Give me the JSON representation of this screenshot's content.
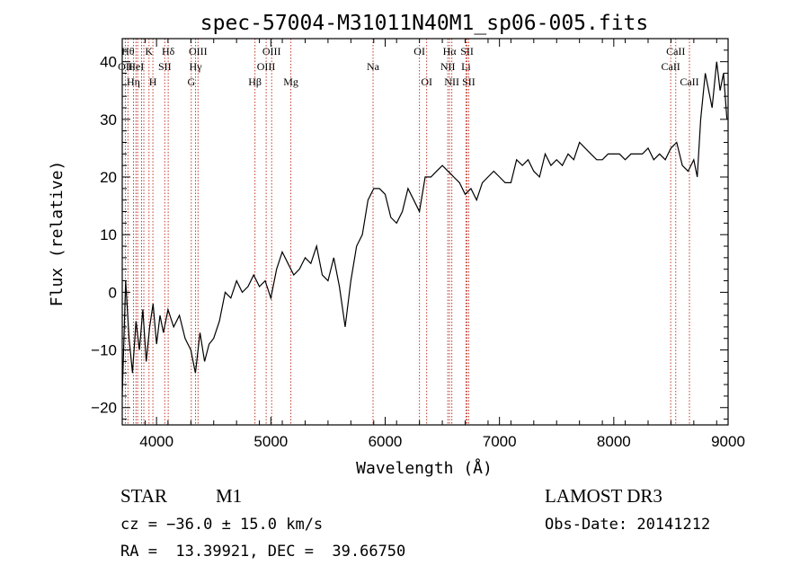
{
  "chart_data": {
    "type": "line",
    "title": "spec-57004-M31011N40M1_sp06-005.fits",
    "xlabel": "Wavelength (Å)",
    "ylabel": "Flux (relative)",
    "xlim": [
      3700,
      9000
    ],
    "ylim": [
      -23,
      44
    ],
    "x_ticks": [
      4000,
      5000,
      6000,
      7000,
      8000,
      9000
    ],
    "x_tick_labels": [
      "4000",
      "5000",
      "6000",
      "7000",
      "8000",
      "9000"
    ],
    "y_ticks": [
      -20,
      -10,
      0,
      10,
      20,
      30,
      40
    ],
    "y_tick_labels": [
      "−20",
      "−10",
      "0",
      "10",
      "20",
      "30",
      "40"
    ],
    "line_color": "#000000",
    "marker_color": "#c0392b",
    "series": [
      {
        "x": [
          3700,
          3730,
          3760,
          3790,
          3820,
          3850,
          3880,
          3910,
          3940,
          3970,
          4000,
          4030,
          4060,
          4100,
          4150,
          4200,
          4250,
          4300,
          4340,
          4380,
          4420,
          4460,
          4500,
          4550,
          4600,
          4650,
          4700,
          4750,
          4800,
          4850,
          4900,
          4950,
          5000,
          5050,
          5100,
          5150,
          5200,
          5250,
          5300,
          5350,
          5400,
          5450,
          5500,
          5550,
          5600,
          5650,
          5700,
          5750,
          5800,
          5850,
          5900,
          5950,
          6000,
          6050,
          6100,
          6150,
          6200,
          6250,
          6300,
          6350,
          6400,
          6450,
          6500,
          6550,
          6600,
          6650,
          6700,
          6750,
          6800,
          6850,
          6900,
          6950,
          7000,
          7050,
          7100,
          7150,
          7200,
          7250,
          7300,
          7350,
          7400,
          7450,
          7500,
          7550,
          7600,
          7650,
          7700,
          7750,
          7800,
          7850,
          7900,
          7950,
          8000,
          8050,
          8100,
          8150,
          8200,
          8250,
          8300,
          8350,
          8400,
          8450,
          8500,
          8550,
          8600,
          8650,
          8700,
          8730,
          8760,
          8800,
          8830,
          8860,
          8900,
          8930,
          8960,
          8990
        ],
        "y": [
          -18,
          2,
          -8,
          -14,
          -5,
          -10,
          -3,
          -12,
          -6,
          -2,
          -9,
          -4,
          -7,
          -3,
          -6,
          -4,
          -8,
          -10,
          -14,
          -7,
          -12,
          -9,
          -8,
          -5,
          0,
          -1,
          2,
          0,
          1,
          3,
          1,
          2,
          -1,
          4,
          7,
          5,
          3,
          4,
          6,
          5,
          8,
          3,
          2,
          6,
          1,
          -6,
          2,
          8,
          10,
          16,
          18,
          18,
          17,
          13,
          12,
          14,
          18,
          16,
          14,
          20,
          20,
          21,
          22,
          21,
          20,
          19,
          17,
          18,
          16,
          19,
          20,
          21,
          20,
          19,
          19,
          23,
          22,
          23,
          21,
          20,
          24,
          22,
          23,
          22,
          24,
          23,
          26,
          25,
          24,
          23,
          23,
          24,
          24,
          24,
          23,
          24,
          24,
          24,
          25,
          23,
          24,
          23,
          25,
          26,
          22,
          21,
          23,
          20,
          30,
          38,
          35,
          32,
          40,
          35,
          38,
          30
        ],
        "name": ""
      }
    ],
    "lines": [
      {
        "x": 3727,
        "label": "OII",
        "row": 2
      },
      {
        "x": 3750,
        "label": "Hθ",
        "row": 1
      },
      {
        "x": 3798,
        "label": "Hη",
        "row": 3
      },
      {
        "x": 3820,
        "label": "HeI",
        "row": 2
      },
      {
        "x": 3835,
        "label": "",
        "row": 0
      },
      {
        "x": 3869,
        "label": "",
        "row": 0
      },
      {
        "x": 3889,
        "label": "",
        "row": 0
      },
      {
        "x": 3934,
        "label": "K",
        "row": 1
      },
      {
        "x": 3968,
        "label": "H",
        "row": 3
      },
      {
        "x": 4072,
        "label": "SII",
        "row": 2
      },
      {
        "x": 4102,
        "label": "Hδ",
        "row": 1
      },
      {
        "x": 4304,
        "label": "G",
        "row": 3
      },
      {
        "x": 4341,
        "label": "Hγ",
        "row": 2
      },
      {
        "x": 4363,
        "label": "OIII",
        "row": 1
      },
      {
        "x": 4861,
        "label": "Hβ",
        "row": 3
      },
      {
        "x": 4959,
        "label": "OIII",
        "row": 2
      },
      {
        "x": 5007,
        "label": "OIII",
        "row": 1
      },
      {
        "x": 5175,
        "label": "Mg",
        "row": 3
      },
      {
        "x": 5894,
        "label": "Na",
        "row": 2
      },
      {
        "x": 6300,
        "label": "OI",
        "row": 1
      },
      {
        "x": 6363,
        "label": "OI",
        "row": 3
      },
      {
        "x": 6548,
        "label": "NII",
        "row": 2
      },
      {
        "x": 6563,
        "label": "Hα",
        "row": 1
      },
      {
        "x": 6583,
        "label": "NII",
        "row": 3
      },
      {
        "x": 6707,
        "label": "Li",
        "row": 2
      },
      {
        "x": 6716,
        "label": "SII",
        "row": 1
      },
      {
        "x": 6731,
        "label": "SII",
        "row": 3
      },
      {
        "x": 8498,
        "label": "CaII",
        "row": 2
      },
      {
        "x": 8542,
        "label": "CaII",
        "row": 1
      },
      {
        "x": 8662,
        "label": "CaII",
        "row": 3
      }
    ]
  },
  "info": {
    "object_class": "STAR",
    "subclass": "M1",
    "survey": "LAMOST DR3",
    "cz": "cz = −36.0 ± 15.0 km/s",
    "obs_date": "Obs-Date: 20141212",
    "coords": "RA =  13.39921, DEC =  39.66750"
  }
}
